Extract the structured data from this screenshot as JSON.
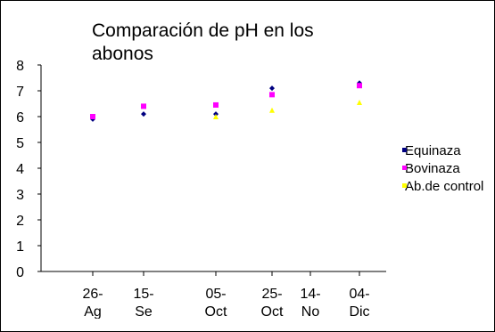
{
  "chart_data": {
    "type": "scatter",
    "title": "Comparación de pH en los abonos",
    "xlabel": "",
    "ylabel": "",
    "ylim": [
      0,
      8
    ],
    "yticks": [
      "0",
      "1",
      "2",
      "3",
      "4",
      "5",
      "6",
      "7",
      "8"
    ],
    "xtick_labels": [
      "26-Ag",
      "15-Se",
      "05-Oct",
      "25-Oct",
      "14-No",
      "04-Dic"
    ],
    "grid": false,
    "legend_position": "right",
    "series": [
      {
        "name": "Equinaza",
        "color": "#000080",
        "marker": "diamond",
        "points": [
          {
            "x": "26-Ag",
            "y": 5.9
          },
          {
            "x": "15-Se",
            "y": 6.1
          },
          {
            "x": "05-Oct",
            "y": 6.1
          },
          {
            "x": "25-Oct",
            "y": 7.1
          },
          {
            "x": "04-Dic",
            "y": 7.3
          }
        ]
      },
      {
        "name": "Bovinaza",
        "color": "#ff00ff",
        "marker": "square",
        "points": [
          {
            "x": "26-Ag",
            "y": 6.0
          },
          {
            "x": "15-Se",
            "y": 6.4
          },
          {
            "x": "05-Oct",
            "y": 6.45
          },
          {
            "x": "25-Oct",
            "y": 6.85
          },
          {
            "x": "04-Dic",
            "y": 7.2
          }
        ]
      },
      {
        "name": "Ab.de control",
        "color": "#ffff00",
        "marker": "triangle",
        "points": [
          {
            "x": "05-Oct",
            "y": 6.0
          },
          {
            "x": "25-Oct",
            "y": 6.25
          },
          {
            "x": "04-Dic",
            "y": 6.55
          }
        ]
      }
    ]
  }
}
